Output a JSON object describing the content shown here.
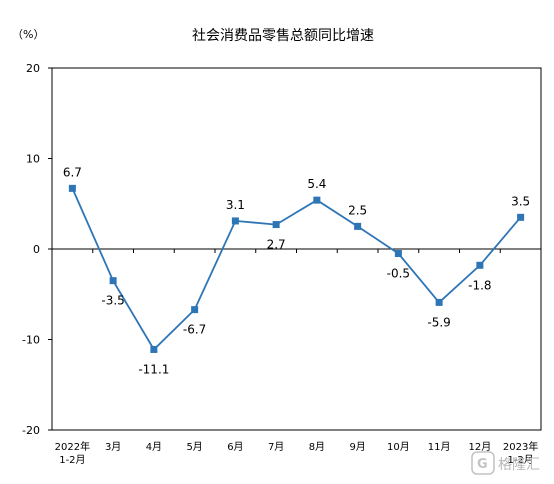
{
  "chart_data": {
    "type": "line",
    "title": "社会消费品零售总额同比增速",
    "unit": "（%）",
    "categories": [
      [
        "2022年",
        "1-2月"
      ],
      [
        "3月"
      ],
      [
        "4月"
      ],
      [
        "5月"
      ],
      [
        "6月"
      ],
      [
        "7月"
      ],
      [
        "8月"
      ],
      [
        "9月"
      ],
      [
        "10月"
      ],
      [
        "11月"
      ],
      [
        "12月"
      ],
      [
        "2023年",
        "1-2月"
      ]
    ],
    "series": [
      {
        "values": [
          6.7,
          -3.5,
          -11.1,
          -6.7,
          3.1,
          2.7,
          5.4,
          2.5,
          -0.5,
          -5.9,
          -1.8,
          3.5
        ]
      }
    ],
    "data_labels": [
      "6.7",
      "-3.5",
      "-11.1",
      "-6.7",
      "3.1",
      "2.7",
      "5.4",
      "2.5",
      "-0.5",
      "-5.9",
      "-1.8",
      "3.5"
    ],
    "ylim": [
      -20,
      20
    ],
    "yticks": [
      20,
      10,
      0,
      -10,
      -20
    ],
    "grid": false,
    "legend": "none",
    "xlabel": "",
    "ylabel": "",
    "line_color": "#2e75b6",
    "marker_color": "#2e75b6",
    "axis_color": "#000000"
  },
  "watermark": {
    "text": "格隆汇"
  }
}
